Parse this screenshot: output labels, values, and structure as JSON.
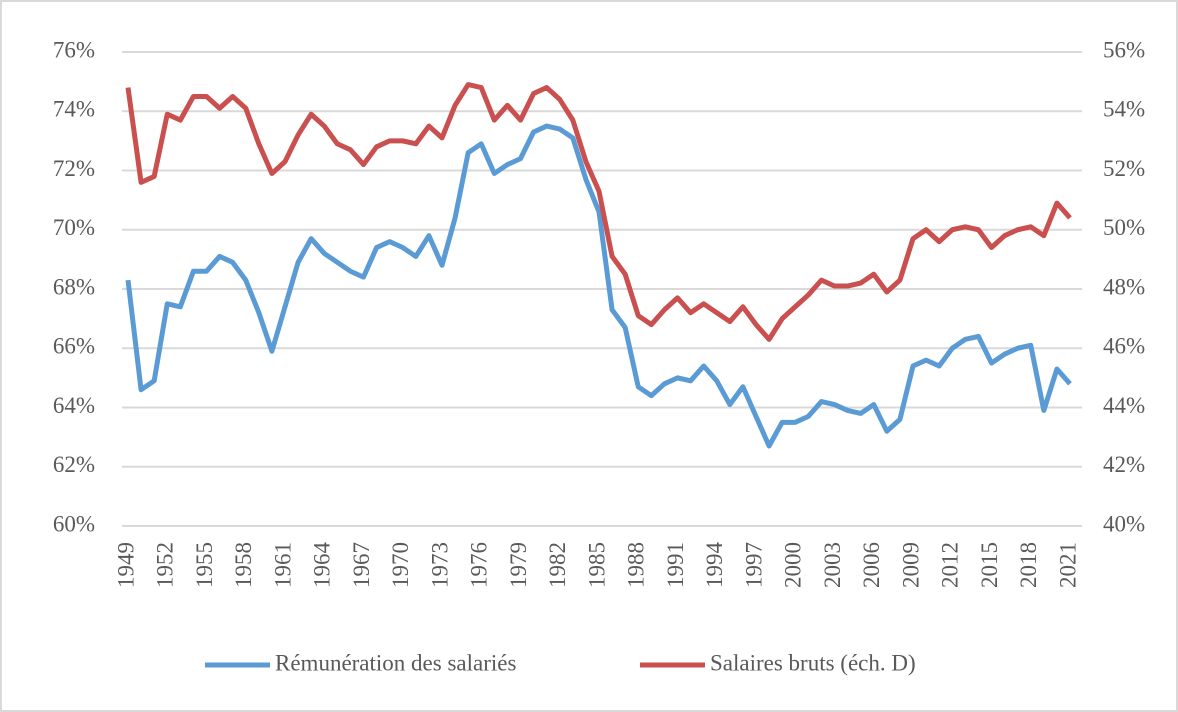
{
  "chart_data": {
    "type": "line",
    "x": [
      1949,
      1950,
      1951,
      1952,
      1953,
      1954,
      1955,
      1956,
      1957,
      1958,
      1959,
      1960,
      1961,
      1962,
      1963,
      1964,
      1965,
      1966,
      1967,
      1968,
      1969,
      1970,
      1971,
      1972,
      1973,
      1974,
      1975,
      1976,
      1977,
      1978,
      1979,
      1980,
      1981,
      1982,
      1983,
      1984,
      1985,
      1986,
      1987,
      1988,
      1989,
      1990,
      1991,
      1992,
      1993,
      1994,
      1995,
      1996,
      1997,
      1998,
      1999,
      2000,
      2001,
      2002,
      2003,
      2004,
      2005,
      2006,
      2007,
      2008,
      2009,
      2010,
      2011,
      2012,
      2013,
      2014,
      2015,
      2016,
      2017,
      2018,
      2019,
      2020,
      2021
    ],
    "xlim": [
      1949,
      2021
    ],
    "xticks": [
      1949,
      1952,
      1955,
      1958,
      1961,
      1964,
      1967,
      1970,
      1973,
      1976,
      1979,
      1982,
      1985,
      1988,
      1991,
      1994,
      1997,
      2000,
      2003,
      2006,
      2009,
      2012,
      2015,
      2018,
      2021
    ],
    "ylim": [
      60,
      76
    ],
    "yticks": [
      {
        "value": 60,
        "label": "60%"
      },
      {
        "value": 62,
        "label": "62%"
      },
      {
        "value": 64,
        "label": "64%"
      },
      {
        "value": 66,
        "label": "66%"
      },
      {
        "value": 68,
        "label": "68%"
      },
      {
        "value": 70,
        "label": "70%"
      },
      {
        "value": 72,
        "label": "72%"
      },
      {
        "value": 74,
        "label": "74%"
      },
      {
        "value": 76,
        "label": "76%"
      }
    ],
    "y2lim": [
      40,
      56
    ],
    "y2ticks": [
      {
        "value": 40,
        "label": "40%"
      },
      {
        "value": 42,
        "label": "42%"
      },
      {
        "value": 44,
        "label": "44%"
      },
      {
        "value": 46,
        "label": "46%"
      },
      {
        "value": 48,
        "label": "48%"
      },
      {
        "value": 50,
        "label": "50%"
      },
      {
        "value": 52,
        "label": "52%"
      },
      {
        "value": 54,
        "label": "54%"
      },
      {
        "value": 56,
        "label": "56%"
      }
    ],
    "grid": true,
    "legend": "bottom",
    "series": [
      {
        "name": "Rémunération des salariés",
        "color": "#5b9bd5",
        "axis": "y",
        "values": [
          68.3,
          64.6,
          64.9,
          67.5,
          67.4,
          68.6,
          68.6,
          69.1,
          68.9,
          68.3,
          67.2,
          65.9,
          67.4,
          68.9,
          69.7,
          69.2,
          68.9,
          68.6,
          68.4,
          69.4,
          69.6,
          69.4,
          69.1,
          69.8,
          68.8,
          70.4,
          72.6,
          72.9,
          71.9,
          72.2,
          72.4,
          73.3,
          73.5,
          73.4,
          73.1,
          71.7,
          70.6,
          67.3,
          66.7,
          64.7,
          64.4,
          64.8,
          65.0,
          64.9,
          65.4,
          64.9,
          64.1,
          64.7,
          63.7,
          62.7,
          63.5,
          63.5,
          63.7,
          64.2,
          64.1,
          63.9,
          63.8,
          64.1,
          63.2,
          63.6,
          65.4,
          65.6,
          65.4,
          66.0,
          66.3,
          66.4,
          65.5,
          65.8,
          66.0,
          66.1,
          63.9,
          65.3,
          64.8
        ]
      },
      {
        "name": "Salaires bruts (éch. D)",
        "color": "#c9504f",
        "axis": "y2",
        "values": [
          54.8,
          51.6,
          51.8,
          53.9,
          53.7,
          54.5,
          54.5,
          54.1,
          54.5,
          54.1,
          52.9,
          51.9,
          52.3,
          53.2,
          53.9,
          53.5,
          52.9,
          52.7,
          52.2,
          52.8,
          53.0,
          53.0,
          52.9,
          53.5,
          53.1,
          54.2,
          54.9,
          54.8,
          53.7,
          54.2,
          53.7,
          54.6,
          54.8,
          54.4,
          53.7,
          52.3,
          51.3,
          49.1,
          48.5,
          47.1,
          46.8,
          47.3,
          47.7,
          47.2,
          47.5,
          47.2,
          46.9,
          47.4,
          46.8,
          46.3,
          47.0,
          47.4,
          47.8,
          48.3,
          48.1,
          48.1,
          48.2,
          48.5,
          47.9,
          48.3,
          49.7,
          50.0,
          49.6,
          50.0,
          50.1,
          50.0,
          49.4,
          49.8,
          50.0,
          50.1,
          49.8,
          50.9,
          50.4
        ]
      }
    ]
  }
}
